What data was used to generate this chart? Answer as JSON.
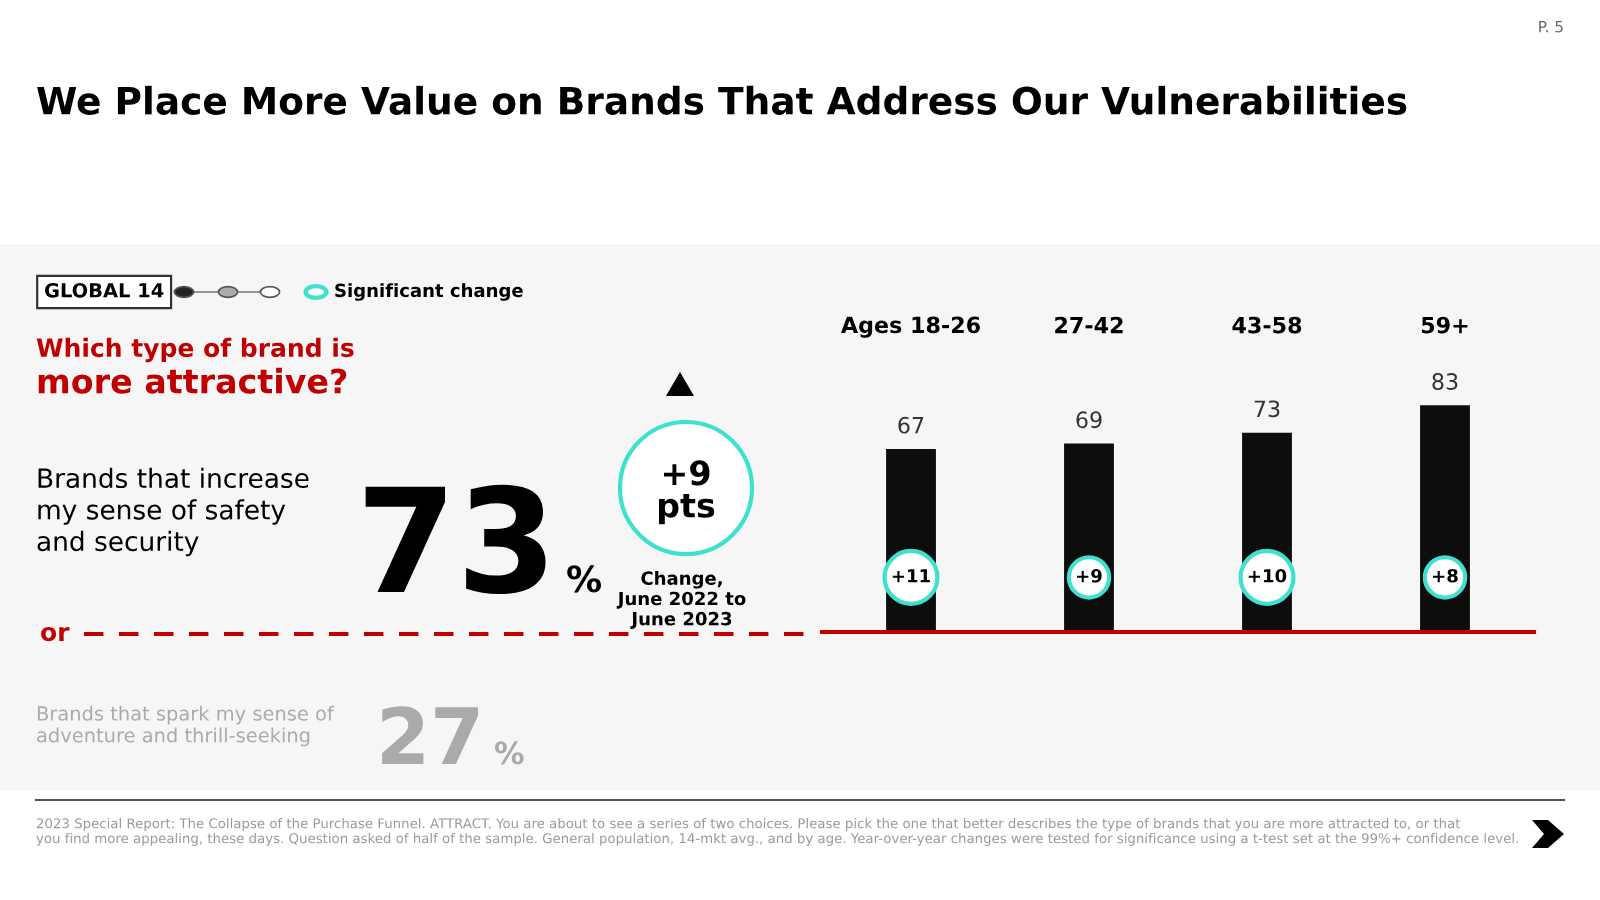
{
  "chart_data": {
    "type": "bar",
    "title": "We Place More Value on Brands That Address Our Vulnerabilities",
    "categories": [
      "Ages 18-26",
      "27-42",
      "43-58",
      "59+"
    ],
    "values": [
      67,
      69,
      73,
      83
    ],
    "color": "#0d0d0d",
    "data_labels": true,
    "grid": false,
    "legend": false,
    "annotations": [
      "GLOBAL 14",
      "Significant change",
      "Which type of brand is",
      "more attractive?",
      "Brands that increase\nmy sense of safety\nand security",
      "73%",
      "+9\npts",
      "Change,\nJune 2022 to\nJune 2023",
      "or",
      "Brands that spark my sense of\nadventure and thrill-seeking",
      "27%",
      {
        "text": "+11",
        "x": "Ages 18-26",
        "y": 20
      },
      {
        "text": "+9",
        "x": "27-42",
        "y": 20
      },
      {
        "text": "+10",
        "x": "43-58",
        "y": 20
      },
      {
        "text": "+8",
        "x": "59+",
        "y": 20
      },
      "2023 Special Report: The Collapse of the Purchase Funnel. ATTRACT. You are about to see a series of two choices. Please pick the one that better describes the type of brands that you are more attracted to, or that\nyou find more appealing, these days. Question asked of half of the sample. General population, 14-mkt avg., and by age. Year-over-year changes were tested for significance using a t-test set at the 99%+ confidence level.",
      "P. 5"
    ]
  }
}
